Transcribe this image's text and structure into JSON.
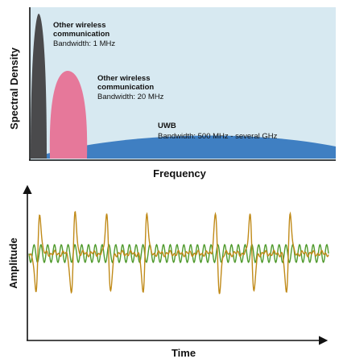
{
  "colors": {
    "top_panel_bg": "#d7e9f1",
    "narrowband_1mhz": "#4a4a4c",
    "narrowband_20mhz": "#e6789a",
    "uwb_band": "#3f7fc2",
    "uwb_pulses": "#c08a18",
    "carrier_wave": "#4f9a2c",
    "axes": "#111111"
  },
  "spectrum_panel": {
    "y_axis_label": "Spectral Density",
    "x_axis_label": "Frequency",
    "annotations": [
      {
        "title_line1": "Other wireless",
        "title_line2": "communication",
        "detail": "Bandwidth: 1 MHz"
      },
      {
        "title_line1": "Other wireless",
        "title_line2": "communication",
        "detail": "Bandwidth: 20 MHz"
      },
      {
        "title_line1": "UWB",
        "title_line2": "",
        "detail": "Bandwidth: 500 MHz - several GHz"
      }
    ]
  },
  "time_panel": {
    "y_axis_label": "Amplitude",
    "x_axis_label": "Time",
    "pulse_count": 7,
    "carrier_cycles": 44
  }
}
